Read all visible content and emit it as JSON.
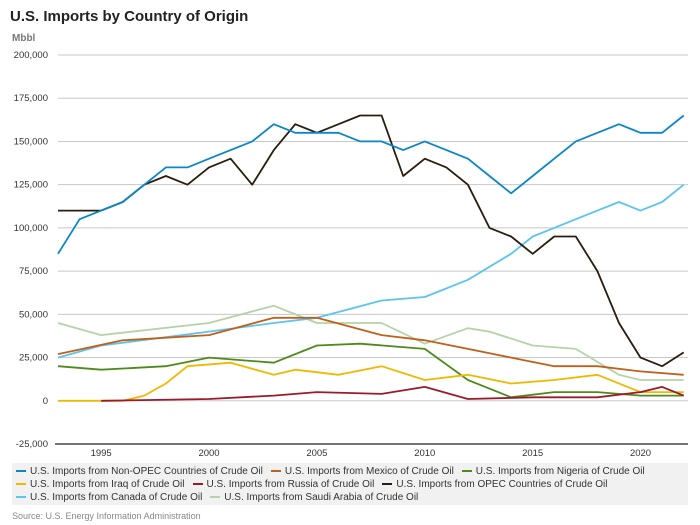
{
  "chart_data": {
    "type": "line",
    "title": "U.S. Imports by Country of Origin",
    "ylabel": "Mbbl",
    "xlabel": "",
    "ylim": [
      -25000,
      200000
    ],
    "xlim": [
      1993,
      2022.2
    ],
    "yticks": [
      -25000,
      0,
      25000,
      50000,
      75000,
      100000,
      125000,
      150000,
      175000,
      200000
    ],
    "ytick_labels": [
      "-25,000",
      "0",
      "25,000",
      "50,000",
      "75,000",
      "100,000",
      "125,000",
      "150,000",
      "175,000",
      "200,000"
    ],
    "xticks": [
      1995,
      2000,
      2005,
      2010,
      2015,
      2020
    ],
    "xtick_labels": [
      "1995",
      "2000",
      "2005",
      "2010",
      "2015",
      "2020"
    ],
    "grid": true,
    "legend_position": "bottom",
    "series": [
      {
        "name": "U.S. Imports from Non-OPEC Countries of Crude Oil",
        "color": "#0a86c9",
        "x": [
          1993,
          1994,
          1995,
          1996,
          1997,
          1998,
          1999,
          2000,
          2001,
          2002,
          2003,
          2004,
          2005,
          2006,
          2007,
          2008,
          2009,
          2010,
          2011,
          2012,
          2013,
          2014,
          2015,
          2016,
          2017,
          2018,
          2019,
          2020,
          2021,
          2022
        ],
        "y": [
          85000,
          105000,
          110000,
          115000,
          125000,
          135000,
          135000,
          140000,
          145000,
          150000,
          160000,
          155000,
          155000,
          155000,
          150000,
          150000,
          145000,
          150000,
          145000,
          140000,
          130000,
          120000,
          130000,
          140000,
          150000,
          155000,
          160000,
          155000,
          155000,
          165000
        ]
      },
      {
        "name": "U.S. Imports from Mexico of Crude Oil",
        "color": "#c0601a",
        "x": [
          1993,
          1996,
          2000,
          2003,
          2005,
          2008,
          2010,
          2012,
          2014,
          2016,
          2018,
          2020,
          2022
        ],
        "y": [
          27000,
          35000,
          38000,
          48000,
          48000,
          38000,
          35000,
          30000,
          25000,
          20000,
          20000,
          17000,
          15000
        ]
      },
      {
        "name": "U.S. Imports from Nigeria of Crude Oil",
        "color": "#4f8a1a",
        "x": [
          1993,
          1995,
          1998,
          2000,
          2003,
          2005,
          2007,
          2010,
          2012,
          2014,
          2016,
          2018,
          2020,
          2022
        ],
        "y": [
          20000,
          18000,
          20000,
          25000,
          22000,
          32000,
          33000,
          30000,
          12000,
          2000,
          5000,
          5000,
          3000,
          3000
        ]
      },
      {
        "name": "U.S. Imports from Iraq of Crude Oil",
        "color": "#f0b800",
        "x": [
          1993,
          1996,
          1997,
          1998,
          1999,
          2001,
          2003,
          2004,
          2006,
          2008,
          2010,
          2012,
          2014,
          2016,
          2018,
          2020,
          2022
        ],
        "y": [
          0,
          0,
          3000,
          10000,
          20000,
          22000,
          15000,
          18000,
          15000,
          20000,
          12000,
          15000,
          10000,
          12000,
          15000,
          5000,
          5000
        ]
      },
      {
        "name": "U.S. Imports from Russia of Crude Oil",
        "color": "#9b1b2a",
        "x": [
          1995,
          2000,
          2003,
          2005,
          2008,
          2010,
          2012,
          2015,
          2018,
          2020,
          2021,
          2022
        ],
        "y": [
          0,
          1000,
          3000,
          5000,
          4000,
          8000,
          1000,
          2000,
          2000,
          5000,
          8000,
          3000
        ]
      },
      {
        "name": "U.S. Imports from OPEC Countries of Crude Oil",
        "color": "#2b1d0e",
        "x": [
          1993,
          1994,
          1995,
          1996,
          1997,
          1998,
          1999,
          2000,
          2001,
          2002,
          2003,
          2004,
          2005,
          2006,
          2007,
          2008,
          2009,
          2010,
          2011,
          2012,
          2013,
          2014,
          2015,
          2016,
          2017,
          2018,
          2019,
          2020,
          2021,
          2022
        ],
        "y": [
          110000,
          110000,
          110000,
          115000,
          125000,
          130000,
          125000,
          135000,
          140000,
          125000,
          145000,
          160000,
          155000,
          160000,
          165000,
          165000,
          130000,
          140000,
          135000,
          125000,
          100000,
          95000,
          85000,
          95000,
          95000,
          75000,
          45000,
          25000,
          20000,
          28000
        ]
      },
      {
        "name": "U.S. Imports from Canada of Crude Oil",
        "color": "#5bc4f0",
        "x": [
          1993,
          1995,
          2000,
          2003,
          2005,
          2008,
          2010,
          2012,
          2014,
          2015,
          2016,
          2017,
          2018,
          2019,
          2020,
          2021,
          2022
        ],
        "y": [
          25000,
          32000,
          40000,
          45000,
          48000,
          58000,
          60000,
          70000,
          85000,
          95000,
          100000,
          105000,
          110000,
          115000,
          110000,
          115000,
          125000
        ]
      },
      {
        "name": "U.S. Imports from Saudi Arabia of Crude Oil",
        "color": "#b5d3a8",
        "x": [
          1993,
          1995,
          2000,
          2003,
          2005,
          2008,
          2010,
          2012,
          2013,
          2015,
          2017,
          2019,
          2020,
          2022
        ],
        "y": [
          45000,
          38000,
          45000,
          55000,
          45000,
          45000,
          33000,
          42000,
          40000,
          32000,
          30000,
          15000,
          12000,
          12000
        ]
      }
    ]
  },
  "source": "Source: U.S. Energy Information Administration"
}
